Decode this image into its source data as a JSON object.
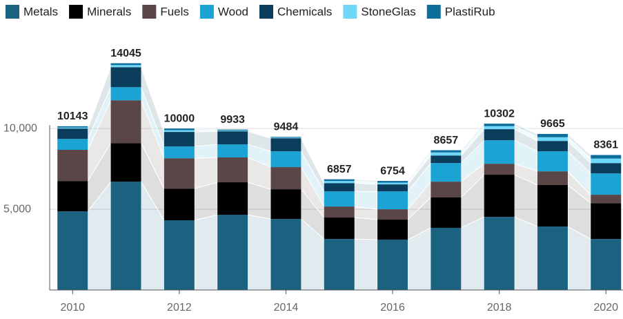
{
  "chart_data": {
    "type": "stacked_bar",
    "x": [
      2010,
      2011,
      2012,
      2013,
      2014,
      2015,
      2016,
      2017,
      2018,
      2019,
      2020
    ],
    "xlim": [
      2009.57,
      2020.32
    ],
    "xticks": [
      2010,
      2012,
      2014,
      2016,
      2018,
      2020
    ],
    "ylim": [
      0,
      16250
    ],
    "yticks": [
      {
        "value": 5000,
        "label": "5,000"
      },
      {
        "value": 10000,
        "label": "10,000"
      }
    ],
    "grid": true,
    "legend": "top",
    "series": [
      {
        "name": "Metals",
        "color": "#1b6180",
        "values": [
          4870,
          6710,
          4320,
          4660,
          4400,
          3160,
          3120,
          3850,
          4530,
          3930,
          3160
        ]
      },
      {
        "name": "Minerals",
        "color": "#000000",
        "values": [
          1880,
          2390,
          1960,
          2010,
          1840,
          1330,
          1240,
          1880,
          2610,
          2570,
          2220
        ]
      },
      {
        "name": "Fuels",
        "color": "#5a4646",
        "values": [
          1930,
          2650,
          1880,
          1540,
          1370,
          680,
          640,
          980,
          680,
          850,
          520
        ]
      },
      {
        "name": "Wood",
        "color": "#1ba3d3",
        "values": [
          680,
          810,
          730,
          810,
          980,
          940,
          1110,
          1150,
          1450,
          1240,
          1320
        ]
      },
      {
        "name": "Chemicals",
        "color": "#0b3d5c",
        "values": [
          640,
          1240,
          900,
          810,
          810,
          510,
          430,
          470,
          690,
          640,
          640
        ]
      },
      {
        "name": "StoneGlas",
        "color": "#6fd7f7",
        "values": [
          60,
          130,
          110,
          50,
          40,
          130,
          110,
          190,
          190,
          230,
          280
        ]
      },
      {
        "name": "PlastiRub",
        "color": "#0e6e9b",
        "values": [
          83,
          115,
          100,
          53,
          44,
          107,
          104,
          137,
          152,
          205,
          221
        ]
      }
    ],
    "totals": [
      10143,
      14045,
      10000,
      9933,
      9484,
      6857,
      6754,
      8657,
      10302,
      9665,
      8361
    ]
  }
}
